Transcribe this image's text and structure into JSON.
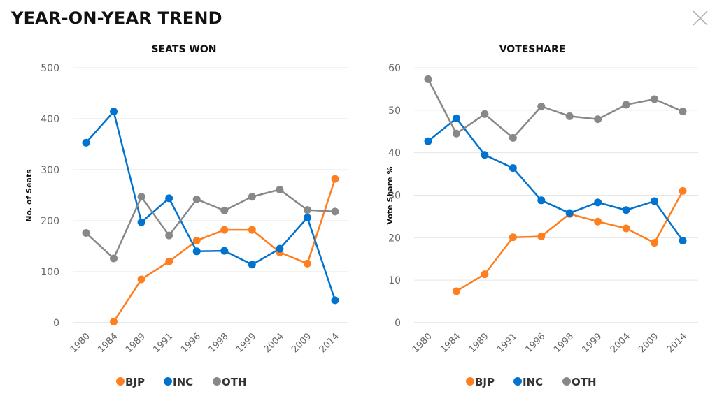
{
  "header": {
    "title": "YEAR-ON-YEAR TREND",
    "close_icon": "close-icon"
  },
  "colors": {
    "BJP": "#ff7f1e",
    "INC": "#0072cf",
    "OTH": "#888888",
    "grid": "#e6e6e6",
    "baseline": "#c8d6e8"
  },
  "chart_data": [
    {
      "type": "line",
      "title": "SEATS WON",
      "xlabel": "",
      "ylabel": "No. of Seats",
      "ylim": [
        0,
        500
      ],
      "yticks": [
        "0",
        "100",
        "200",
        "300",
        "400",
        "500"
      ],
      "ytick_values": [
        0,
        100,
        200,
        300,
        400,
        500
      ],
      "grid": true,
      "legend": "bottom",
      "categories": [
        "1980",
        "1984",
        "1989",
        "1991",
        "1996",
        "1998",
        "1999",
        "2004",
        "2009",
        "2014"
      ],
      "series": [
        {
          "name": "BJP",
          "values": [
            null,
            2,
            85,
            120,
            161,
            182,
            182,
            138,
            116,
            282
          ]
        },
        {
          "name": "INC",
          "values": [
            353,
            414,
            197,
            244,
            140,
            141,
            114,
            145,
            206,
            44
          ]
        },
        {
          "name": "OTH",
          "values": [
            176,
            126,
            247,
            171,
            242,
            220,
            247,
            261,
            221,
            218
          ]
        }
      ]
    },
    {
      "type": "line",
      "title": "VOTESHARE",
      "xlabel": "",
      "ylabel": "Vote Share %",
      "ylim": [
        0,
        60
      ],
      "yticks": [
        "0",
        "10",
        "20",
        "30",
        "40",
        "50",
        "60"
      ],
      "ytick_values": [
        0,
        10,
        20,
        30,
        40,
        50,
        60
      ],
      "grid": true,
      "legend": "bottom",
      "categories": [
        "1980",
        "1984",
        "1989",
        "1991",
        "1996",
        "1998",
        "1999",
        "2004",
        "2009",
        "2014"
      ],
      "series": [
        {
          "name": "BJP",
          "values": [
            null,
            7.4,
            11.4,
            20.1,
            20.3,
            25.6,
            23.8,
            22.2,
            18.8,
            31.0
          ]
        },
        {
          "name": "INC",
          "values": [
            42.7,
            48.1,
            39.5,
            36.4,
            28.8,
            25.8,
            28.3,
            26.5,
            28.6,
            19.3
          ]
        },
        {
          "name": "OTH",
          "values": [
            57.3,
            44.5,
            49.1,
            43.5,
            50.9,
            48.6,
            47.9,
            51.3,
            52.6,
            49.7
          ]
        }
      ]
    }
  ]
}
